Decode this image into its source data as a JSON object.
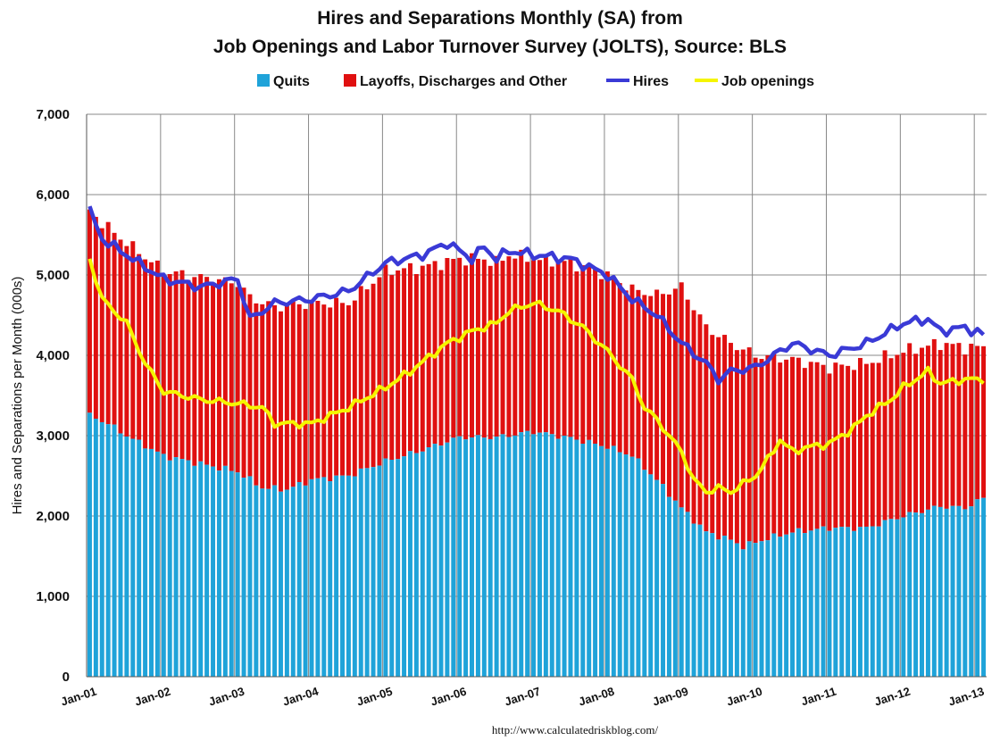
{
  "chart_data": {
    "type": "bar",
    "title_line1": "Hires and Separations Monthly (SA) from",
    "title_line2": "Job Openings and Labor Turnover Survey (JOLTS), Source: BLS",
    "ylabel": "Hires and Separations per Month (000s)",
    "source": "http://www.calculatedriskblog.com/",
    "ylim": [
      0,
      7000
    ],
    "yticks": [
      "0",
      "1,000",
      "2,000",
      "3,000",
      "4,000",
      "5,000",
      "6,000",
      "7,000"
    ],
    "xticks": [
      "Jan-01",
      "Jan-02",
      "Jan-03",
      "Jan-04",
      "Jan-05",
      "Jan-06",
      "Jan-07",
      "Jan-08",
      "Jan-09",
      "Jan-10",
      "Jan-11",
      "Jan-12",
      "Jan-13"
    ],
    "grid": true,
    "legend_position": "top",
    "legend": [
      {
        "label": "Quits",
        "color": "#1fa3d9",
        "kind": "box"
      },
      {
        "label": "Layoffs, Discharges and Other",
        "color": "#e01010",
        "kind": "box"
      },
      {
        "label": "Hires",
        "color": "#3a3ad6",
        "kind": "line"
      },
      {
        "label": "Job openings",
        "color": "#f5f500",
        "kind": "line"
      }
    ],
    "colors": {
      "quits": "#1fa3d9",
      "layoffs": "#e01010",
      "hires": "#3a3ad6",
      "openings": "#f5f500"
    },
    "quits_anchors": [
      [
        0,
        3250
      ],
      [
        3,
        3150
      ],
      [
        6,
        3000
      ],
      [
        12,
        2750
      ],
      [
        18,
        2650
      ],
      [
        24,
        2550
      ],
      [
        28,
        2350
      ],
      [
        32,
        2330
      ],
      [
        36,
        2450
      ],
      [
        42,
        2500
      ],
      [
        48,
        2680
      ],
      [
        54,
        2820
      ],
      [
        60,
        2980
      ],
      [
        66,
        2980
      ],
      [
        72,
        3050
      ],
      [
        78,
        2970
      ],
      [
        84,
        2860
      ],
      [
        88,
        2750
      ],
      [
        92,
        2450
      ],
      [
        96,
        2100
      ],
      [
        100,
        1800
      ],
      [
        104,
        1700
      ],
      [
        106,
        1620
      ],
      [
        110,
        1720
      ],
      [
        114,
        1800
      ],
      [
        120,
        1850
      ],
      [
        126,
        1850
      ],
      [
        132,
        2000
      ],
      [
        138,
        2120
      ],
      [
        142,
        2100
      ],
      [
        145,
        2220
      ]
    ],
    "separations_anchors": [
      [
        0,
        5800
      ],
      [
        2,
        5650
      ],
      [
        6,
        5400
      ],
      [
        12,
        5050
      ],
      [
        18,
        4970
      ],
      [
        24,
        4900
      ],
      [
        26,
        4720
      ],
      [
        30,
        4600
      ],
      [
        36,
        4650
      ],
      [
        42,
        4650
      ],
      [
        48,
        5050
      ],
      [
        54,
        5100
      ],
      [
        60,
        5200
      ],
      [
        64,
        5200
      ],
      [
        66,
        5150
      ],
      [
        68,
        5250
      ],
      [
        72,
        5200
      ],
      [
        78,
        5150
      ],
      [
        84,
        5000
      ],
      [
        88,
        4820
      ],
      [
        92,
        4750
      ],
      [
        96,
        4850
      ],
      [
        100,
        4350
      ],
      [
        104,
        4150
      ],
      [
        108,
        4000
      ],
      [
        114,
        3950
      ],
      [
        120,
        3850
      ],
      [
        126,
        3900
      ],
      [
        132,
        4050
      ],
      [
        138,
        4150
      ],
      [
        142,
        4100
      ],
      [
        145,
        4100
      ]
    ],
    "hires_anchors": [
      [
        0,
        5800
      ],
      [
        2,
        5450
      ],
      [
        6,
        5250
      ],
      [
        12,
        4950
      ],
      [
        18,
        4850
      ],
      [
        24,
        4950
      ],
      [
        26,
        4450
      ],
      [
        30,
        4650
      ],
      [
        36,
        4700
      ],
      [
        39,
        4750
      ],
      [
        42,
        4800
      ],
      [
        48,
        5150
      ],
      [
        54,
        5250
      ],
      [
        58,
        5400
      ],
      [
        62,
        5200
      ],
      [
        64,
        5350
      ],
      [
        66,
        5200
      ],
      [
        68,
        5300
      ],
      [
        72,
        5250
      ],
      [
        78,
        5200
      ],
      [
        84,
        5000
      ],
      [
        88,
        4700
      ],
      [
        92,
        4500
      ],
      [
        96,
        4150
      ],
      [
        100,
        3900
      ],
      [
        102,
        3700
      ],
      [
        104,
        3800
      ],
      [
        108,
        3850
      ],
      [
        114,
        4150
      ],
      [
        120,
        4000
      ],
      [
        126,
        4150
      ],
      [
        132,
        4400
      ],
      [
        136,
        4450
      ],
      [
        138,
        4300
      ],
      [
        142,
        4350
      ],
      [
        145,
        4250
      ]
    ],
    "openings_anchors": [
      [
        0,
        5200
      ],
      [
        2,
        4700
      ],
      [
        6,
        4400
      ],
      [
        9,
        3900
      ],
      [
        12,
        3550
      ],
      [
        18,
        3450
      ],
      [
        24,
        3400
      ],
      [
        28,
        3350
      ],
      [
        30,
        3150
      ],
      [
        36,
        3150
      ],
      [
        42,
        3350
      ],
      [
        48,
        3600
      ],
      [
        52,
        3800
      ],
      [
        58,
        4150
      ],
      [
        62,
        4300
      ],
      [
        66,
        4400
      ],
      [
        68,
        4550
      ],
      [
        72,
        4650
      ],
      [
        76,
        4550
      ],
      [
        80,
        4350
      ],
      [
        84,
        4050
      ],
      [
        88,
        3700
      ],
      [
        90,
        3350
      ],
      [
        92,
        3200
      ],
      [
        96,
        2800
      ],
      [
        98,
        2450
      ],
      [
        100,
        2300
      ],
      [
        102,
        2350
      ],
      [
        104,
        2300
      ],
      [
        108,
        2500
      ],
      [
        110,
        2700
      ],
      [
        112,
        2950
      ],
      [
        114,
        2800
      ],
      [
        116,
        2850
      ],
      [
        120,
        2900
      ],
      [
        124,
        3100
      ],
      [
        126,
        3250
      ],
      [
        130,
        3450
      ],
      [
        132,
        3600
      ],
      [
        136,
        3800
      ],
      [
        138,
        3650
      ],
      [
        142,
        3700
      ],
      [
        145,
        3700
      ]
    ]
  }
}
